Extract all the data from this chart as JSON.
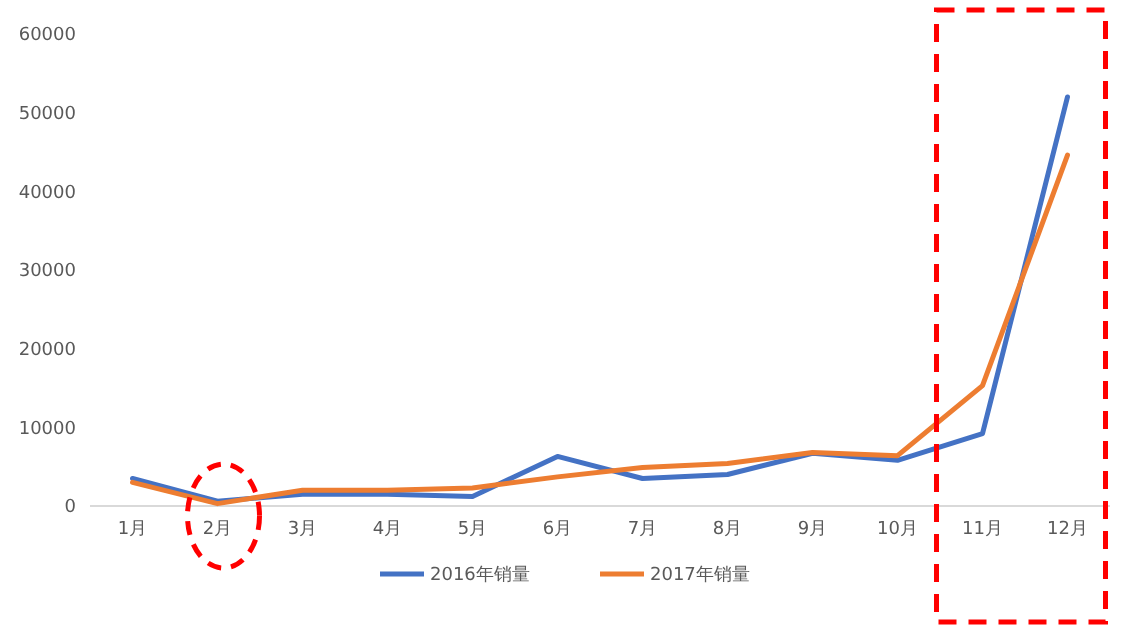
{
  "chart_data": {
    "type": "line",
    "categories": [
      "1月",
      "2月",
      "3月",
      "4月",
      "5月",
      "6月",
      "7月",
      "8月",
      "9月",
      "10月",
      "11月",
      "12月"
    ],
    "series": [
      {
        "name": "2016年销量",
        "color": "#4472c4",
        "values": [
          3500,
          600,
          1500,
          1500,
          1200,
          6300,
          3500,
          4000,
          6700,
          5800,
          9200,
          52000
        ]
      },
      {
        "name": "2017年销量",
        "color": "#ed7d31",
        "values": [
          3000,
          300,
          2000,
          2000,
          2300,
          3700,
          4900,
          5400,
          6800,
          6400,
          15300,
          44600
        ]
      }
    ],
    "ylim": [
      0,
      60000
    ],
    "yticks": [
      0,
      10000,
      20000,
      30000,
      40000,
      50000,
      60000
    ],
    "grid": false,
    "legend": "bottom",
    "marker": "none",
    "line_style": "solid"
  }
}
